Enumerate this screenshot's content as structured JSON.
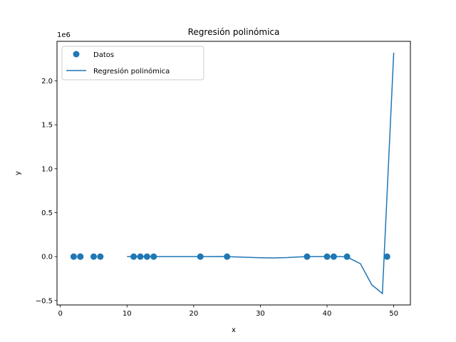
{
  "chart_data": {
    "type": "scatter",
    "title": "Regresión polinómica",
    "xlabel": "x",
    "ylabel": "y",
    "offset_text": "1e6",
    "xlim": [
      -0.5,
      52.5
    ],
    "ylim": [
      -0.55,
      2.45
    ],
    "xticks": [
      0,
      10,
      20,
      30,
      40,
      50
    ],
    "yticks": [
      -0.5,
      0.0,
      0.5,
      1.0,
      1.5,
      2.0
    ],
    "ytick_labels": [
      "−0.5",
      "0.0",
      "0.5",
      "1.0",
      "1.5",
      "2.0"
    ],
    "grid": false,
    "legend_position": "top-left",
    "color": "#1f77b4",
    "series": [
      {
        "name": "Datos",
        "kind": "scatter",
        "x": [
          2,
          3,
          3,
          5,
          6,
          11,
          12,
          13,
          14,
          21,
          25,
          37,
          40,
          41,
          43,
          49
        ],
        "y": [
          0,
          0,
          0,
          0,
          0,
          0,
          0,
          0,
          0,
          0,
          0,
          0,
          0,
          0,
          0,
          0
        ]
      },
      {
        "name": "Regresión polinómica",
        "kind": "line",
        "x": [
          10,
          12,
          14,
          16,
          18,
          20,
          22,
          24,
          26,
          28,
          30,
          32,
          34,
          36,
          38,
          40,
          42,
          43,
          45,
          46.7,
          48.3,
          50
        ],
        "y": [
          0,
          0,
          0,
          0,
          0,
          0,
          0,
          0.001,
          -0.003,
          -0.008,
          -0.013,
          -0.015,
          -0.011,
          -0.003,
          0,
          0,
          0,
          -0.005,
          -0.08,
          -0.32,
          -0.42,
          2.32
        ]
      }
    ]
  }
}
